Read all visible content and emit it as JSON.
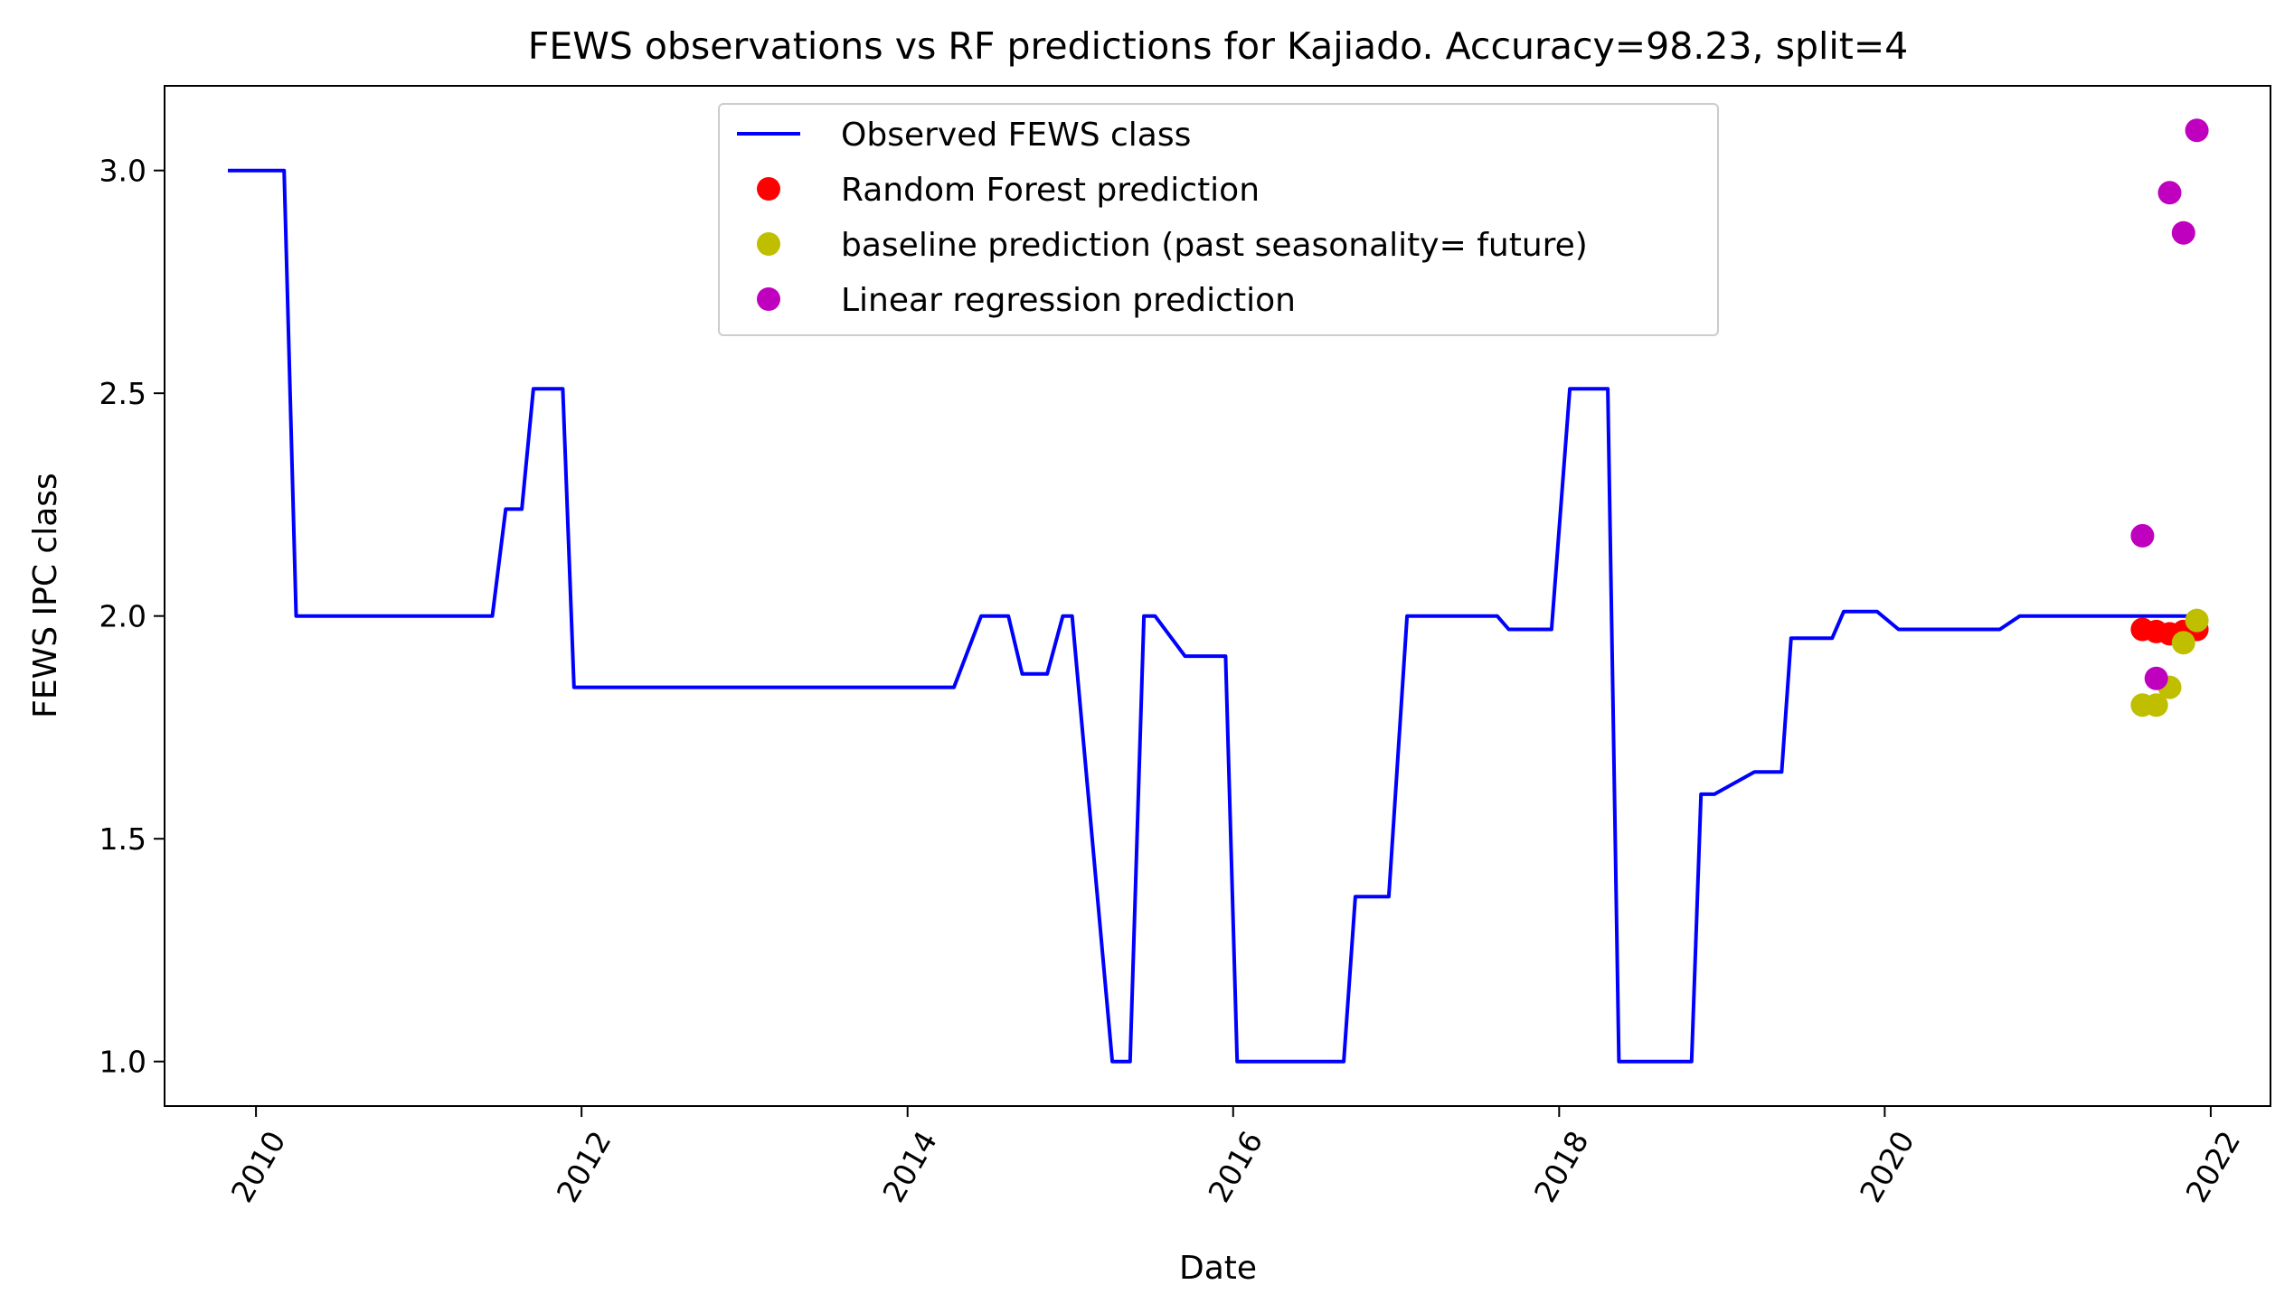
{
  "chart_data": {
    "type": "line",
    "title": "FEWS observations vs RF predictions for Kajiado. Accuracy=98.23, split=4",
    "xlabel": "Date",
    "ylabel": "FEWS IPC class",
    "x_is_date": true,
    "xlim": [
      "2009-06-10",
      "2022-05-15"
    ],
    "ylim": [
      0.9,
      3.19
    ],
    "xticks": [
      "2010-01-01",
      "2012-01-01",
      "2014-01-01",
      "2016-01-01",
      "2018-01-01",
      "2020-01-01",
      "2022-01-01"
    ],
    "xtick_labels": [
      "2010",
      "2012",
      "2014",
      "2016",
      "2018",
      "2020",
      "2022"
    ],
    "yticks": [
      1.0,
      1.5,
      2.0,
      2.5,
      3.0
    ],
    "ytick_labels": [
      "1.0",
      "1.5",
      "2.0",
      "2.5",
      "3.0"
    ],
    "xtick_rotation": 60,
    "grid": false,
    "legend_position": "upper center",
    "series": [
      {
        "name": "Observed FEWS class",
        "kind": "line",
        "color": "#0000ff",
        "x": [
          "2009-10-30",
          "2010-03-05",
          "2010-04-01",
          "2011-06-15",
          "2011-07-15",
          "2011-08-20",
          "2011-09-15",
          "2011-10-20",
          "2011-11-20",
          "2011-12-15",
          "2014-04-15",
          "2014-06-15",
          "2014-08-15",
          "2014-09-15",
          "2014-11-10",
          "2014-12-15",
          "2015-01-05",
          "2015-04-05",
          "2015-04-25",
          "2015-05-15",
          "2015-06-15",
          "2015-07-10",
          "2015-09-15",
          "2015-10-10",
          "2015-12-15",
          "2016-01-10",
          "2016-01-25",
          "2016-06-15",
          "2016-09-05",
          "2016-10-01",
          "2016-12-15",
          "2017-01-25",
          "2017-08-15",
          "2017-09-10",
          "2017-09-30",
          "2017-12-15",
          "2018-01-25",
          "2018-02-01",
          "2018-04-15",
          "2018-04-20",
          "2018-05-15",
          "2018-10-25",
          "2018-11-15",
          "2018-12-15",
          "2019-03-15",
          "2019-05-15",
          "2019-06-05",
          "2019-06-15",
          "2019-09-05",
          "2019-10-01",
          "2019-12-15",
          "2020-02-01",
          "2020-09-15",
          "2020-10-30",
          "2021-12-15"
        ],
        "y": [
          3.0,
          3.0,
          2.0,
          2.0,
          2.24,
          2.24,
          2.51,
          2.51,
          2.51,
          1.84,
          1.84,
          2.0,
          2.0,
          1.87,
          1.87,
          2.0,
          2.0,
          1.0,
          1.0,
          1.0,
          2.0,
          2.0,
          1.91,
          1.91,
          1.91,
          1.0,
          1.0,
          1.0,
          1.0,
          1.37,
          1.37,
          2.0,
          2.0,
          1.97,
          1.97,
          1.97,
          2.51,
          2.51,
          2.51,
          2.51,
          1.0,
          1.0,
          1.6,
          1.6,
          1.65,
          1.65,
          1.95,
          1.95,
          1.95,
          2.01,
          2.01,
          1.97,
          1.97,
          2.0,
          2.0
        ]
      },
      {
        "name": "Random Forest prediction",
        "kind": "points",
        "color": "#ff0000",
        "x": [
          "2021-08-01",
          "2021-09-01",
          "2021-10-01",
          "2021-11-01",
          "2021-12-01"
        ],
        "y": [
          1.97,
          1.965,
          1.96,
          1.965,
          1.97
        ]
      },
      {
        "name": "baseline prediction (past seasonality= future)",
        "kind": "points",
        "color": "#bfbf00",
        "x": [
          "2021-08-01",
          "2021-09-01",
          "2021-10-01",
          "2021-11-01",
          "2021-12-01"
        ],
        "y": [
          1.8,
          1.8,
          1.84,
          1.94,
          1.99
        ]
      },
      {
        "name": "Linear regression prediction",
        "kind": "points",
        "color": "#bf00bf",
        "x": [
          "2021-08-01",
          "2021-09-01",
          "2021-10-01",
          "2021-11-01",
          "2021-12-01"
        ],
        "y": [
          2.18,
          1.86,
          2.95,
          2.86,
          3.09
        ]
      }
    ]
  }
}
